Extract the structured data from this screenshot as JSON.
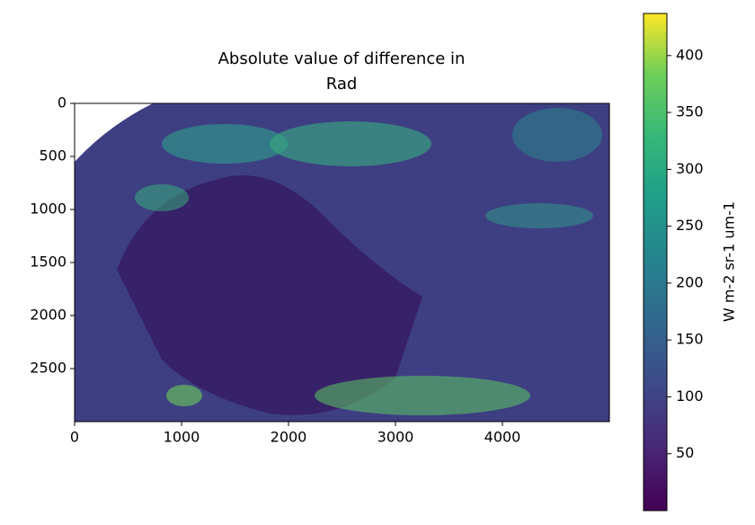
{
  "chart_data": {
    "type": "image",
    "title": [
      "Absolute value of difference in",
      "Rad"
    ],
    "xlim": [
      0,
      5000
    ],
    "xticks": [
      0,
      1000,
      2000,
      3000,
      4000
    ],
    "ylim": [
      3000,
      0
    ],
    "yticks": [
      0,
      500,
      1000,
      1500,
      2000,
      2500
    ],
    "colorbar": {
      "label": "W m-2 sr-1 um-1",
      "colormap": "viridis",
      "lim": [
        0,
        437
      ],
      "ticks": [
        50,
        100,
        150,
        200,
        250,
        300,
        350,
        400
      ]
    }
  }
}
